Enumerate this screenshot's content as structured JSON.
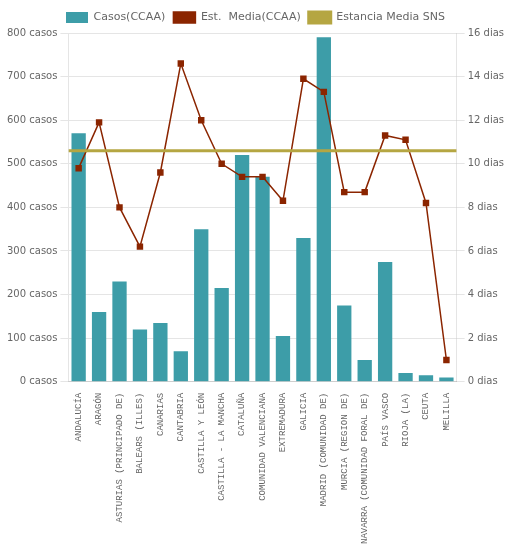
{
  "chart_data": {
    "type": "bar",
    "categories": [
      "ANDALUCÍA",
      "ARAGÓN",
      "ASTURIAS (PRINCIPADO DE)",
      "BALEARS (ILLES)",
      "CANARIAS",
      "CANTABRIA",
      "CASTILLA Y LEÓN",
      "CASTILLA - LA MANCHA",
      "CATALUÑA",
      "COMUNIDAD VALENCIANA",
      "EXTREMADURA",
      "GALICIA",
      "MADRID (COMUNIDAD DE)",
      "MURCIA (REGION DE)",
      "NAVARRA (COMUNIDAD FORAL DE)",
      "PAÍS VASCO",
      "RIOJA (LA)",
      "CEUTA",
      "MELILLA"
    ],
    "series": [
      {
        "name": "Casos(CCAA)",
        "type": "bar",
        "color": "#3d9da8",
        "values": [
          570,
          160,
          230,
          120,
          135,
          70,
          350,
          215,
          520,
          470,
          105,
          330,
          790,
          175,
          50,
          275,
          20,
          15,
          10
        ]
      },
      {
        "name": "Est.  Media(CCAA)",
        "type": "line",
        "color": "#8B2500",
        "marker": "square",
        "values": [
          490,
          595,
          400,
          310,
          480,
          730,
          600,
          500,
          470,
          470,
          415,
          695,
          665,
          435,
          435,
          565,
          555,
          410,
          50
        ]
      },
      {
        "name": "Estancia Media SNS",
        "type": "hline",
        "color": "#b5a642",
        "value": 530
      }
    ],
    "ylim": [
      0,
      800
    ],
    "yticks": [
      {
        "value": 0,
        "label": "0 casos"
      },
      {
        "value": 100,
        "label": "100 casos"
      },
      {
        "value": 200,
        "label": "200 casos"
      },
      {
        "value": 300,
        "label": "300 casos"
      },
      {
        "value": 400,
        "label": "400 casos"
      },
      {
        "value": 500,
        "label": "500 casos"
      },
      {
        "value": 600,
        "label": "600 casos"
      },
      {
        "value": 700,
        "label": "700 casos"
      },
      {
        "value": 800,
        "label": "800 casos"
      }
    ],
    "y2lim": [
      0,
      16
    ],
    "y2ticks": [
      {
        "value": 0,
        "label": "0 dias"
      },
      {
        "value": 2,
        "label": "2 dias"
      },
      {
        "value": 4,
        "label": "4 dias"
      },
      {
        "value": 6,
        "label": "6 dias"
      },
      {
        "value": 8,
        "label": "8 dias"
      },
      {
        "value": 10,
        "label": "10 dias"
      },
      {
        "value": 12,
        "label": "12 dias"
      },
      {
        "value": 14,
        "label": "14 dias"
      },
      {
        "value": 16,
        "label": "16 dias"
      }
    ],
    "grid": true,
    "legend": "top"
  }
}
